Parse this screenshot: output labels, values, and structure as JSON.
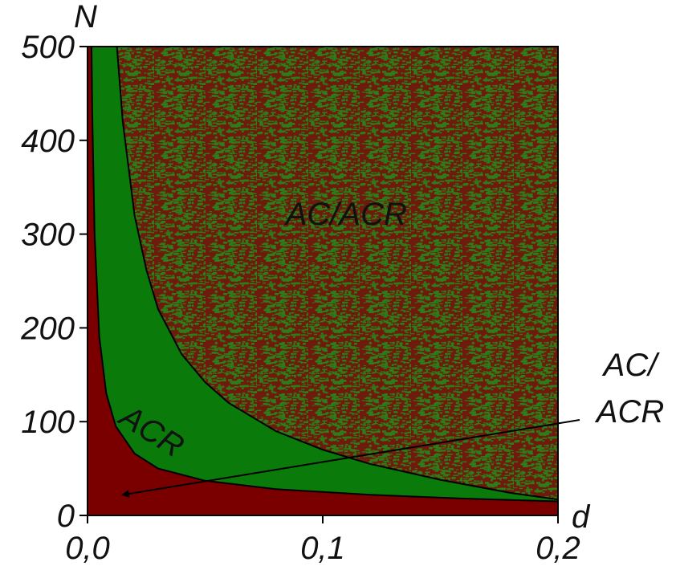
{
  "chart_data": {
    "type": "heatmap",
    "xlabel": "d",
    "ylabel": "N",
    "xlim": [
      0,
      0.2
    ],
    "ylim": [
      0,
      500
    ],
    "x_ticks": [
      {
        "value": 0.0,
        "label": "0,0"
      },
      {
        "value": 0.1,
        "label": "0,1"
      },
      {
        "value": 0.2,
        "label": "0,2"
      }
    ],
    "y_ticks": [
      {
        "value": 0,
        "label": "0"
      },
      {
        "value": 100,
        "label": "100"
      },
      {
        "value": 200,
        "label": "200"
      },
      {
        "value": 300,
        "label": "300"
      },
      {
        "value": 400,
        "label": "400"
      },
      {
        "value": 500,
        "label": "500"
      }
    ],
    "regions": [
      {
        "name": "AC",
        "color": "#7a0000"
      },
      {
        "name": "ACR",
        "color": "#0a7a0a"
      },
      {
        "name": "AC/ACR",
        "color": "#4f5a14"
      }
    ],
    "boundaries": [
      {
        "name": "lower",
        "points": [
          [
            0.0017,
            500
          ],
          [
            0.002,
            430
          ],
          [
            0.003,
            300
          ],
          [
            0.005,
            190
          ],
          [
            0.008,
            130
          ],
          [
            0.012,
            95
          ],
          [
            0.02,
            66
          ],
          [
            0.03,
            50
          ],
          [
            0.05,
            37
          ],
          [
            0.08,
            28
          ],
          [
            0.12,
            22
          ],
          [
            0.16,
            18
          ],
          [
            0.2,
            15
          ]
        ]
      },
      {
        "name": "upper",
        "points": [
          [
            0.0125,
            500
          ],
          [
            0.015,
            420
          ],
          [
            0.02,
            320
          ],
          [
            0.025,
            262
          ],
          [
            0.03,
            220
          ],
          [
            0.04,
            172
          ],
          [
            0.05,
            142
          ],
          [
            0.06,
            120
          ],
          [
            0.08,
            90
          ],
          [
            0.1,
            70
          ],
          [
            0.12,
            55
          ],
          [
            0.15,
            38
          ],
          [
            0.18,
            24
          ],
          [
            0.2,
            17
          ]
        ]
      }
    ],
    "annotations": [
      {
        "text": "AC/ACR",
        "x": 0.11,
        "y": 310,
        "lines": [
          "AC/ACR"
        ]
      },
      {
        "text": "ACR",
        "x": 0.025,
        "y": 80,
        "lines": [
          "ACR"
        ]
      },
      {
        "text": "AC/ ACR",
        "x": 0.23,
        "y": 135,
        "lines": [
          "AC/",
          "ACR"
        ]
      }
    ],
    "arrow": {
      "from": [
        0.21,
        100
      ],
      "to": [
        0.015,
        22
      ]
    }
  }
}
